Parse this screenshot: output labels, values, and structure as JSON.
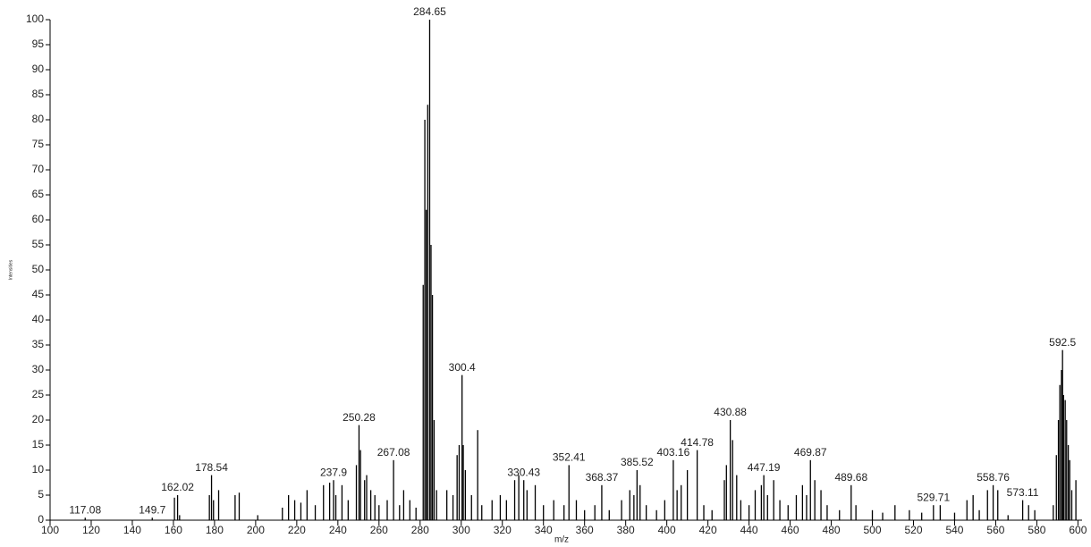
{
  "chart_data": {
    "type": "stem",
    "x_label": "m/z",
    "y_label": "Intensities",
    "color": "#000000",
    "xlim": [
      100,
      602
    ],
    "ylim": [
      0,
      100
    ],
    "xticks": [
      100,
      120,
      140,
      160,
      180,
      200,
      220,
      240,
      260,
      280,
      300,
      320,
      340,
      360,
      380,
      400,
      420,
      440,
      460,
      480,
      500,
      520,
      540,
      560,
      580,
      600
    ],
    "yticks": [
      0,
      5,
      10,
      15,
      20,
      25,
      30,
      35,
      40,
      45,
      50,
      55,
      60,
      65,
      70,
      75,
      80,
      85,
      90,
      95,
      100
    ],
    "peaks": {
      "x": [
        117.08,
        149.7,
        162.02,
        178.54,
        237.9,
        250.28,
        267.08,
        284.65,
        300.4,
        330.43,
        352.41,
        368.37,
        385.52,
        403.16,
        414.78,
        430.88,
        447.19,
        469.87,
        489.68,
        529.71,
        558.76,
        573.11,
        592.5
      ],
      "values": [
        0.5,
        0.5,
        5,
        9,
        8,
        19,
        12,
        100,
        29,
        8,
        11,
        7,
        10,
        12,
        14,
        20,
        9,
        12,
        7,
        3,
        7,
        4,
        34
      ]
    },
    "minor_peaks": {
      "x": [
        160.5,
        163,
        177.5,
        179.5,
        182,
        190,
        192,
        201,
        213,
        216,
        219,
        222,
        225,
        229,
        233,
        236,
        239,
        242,
        245,
        249,
        251,
        253,
        254,
        256,
        258,
        260,
        264,
        270,
        272,
        275,
        278,
        281.5,
        282.3,
        283,
        283.7,
        285.3,
        286,
        286.8,
        288,
        293,
        296,
        298,
        299,
        301,
        302,
        305,
        308,
        310,
        315,
        319,
        322,
        326,
        328,
        332,
        336,
        340,
        345,
        350,
        356,
        360,
        365,
        372,
        378,
        382,
        384,
        387,
        390,
        395,
        399,
        405,
        407,
        410,
        418,
        422,
        428,
        429,
        432,
        434,
        436,
        440,
        443,
        446,
        449,
        452,
        455,
        459,
        463,
        466,
        468,
        472,
        475,
        478,
        484,
        492,
        500,
        505,
        511,
        518,
        524,
        533,
        540,
        546,
        549,
        552,
        556,
        561,
        566,
        576,
        579,
        588,
        589.5,
        590.5,
        591.2,
        592,
        593,
        593.8,
        594.5,
        595.3,
        596,
        597,
        599
      ],
      "values": [
        4.5,
        1,
        5,
        4,
        6,
        5,
        5.5,
        1,
        2.5,
        5,
        4,
        3.5,
        6,
        3,
        7,
        7.5,
        5,
        7,
        4,
        11,
        14,
        8,
        9,
        6,
        5,
        3,
        4,
        3,
        6,
        4,
        2.5,
        47,
        80,
        62,
        83,
        55,
        45,
        20,
        6,
        6,
        5,
        13,
        15,
        15,
        10,
        5,
        18,
        3,
        4,
        5,
        4,
        8,
        9,
        6,
        7,
        3,
        4,
        3,
        4,
        2,
        3,
        2,
        4,
        6,
        5,
        7,
        3,
        2,
        4,
        6,
        7,
        10,
        3,
        2,
        8,
        11,
        16,
        9,
        4,
        3,
        6,
        7,
        5,
        8,
        4,
        3,
        5,
        7,
        5,
        8,
        6,
        3,
        2,
        3,
        2,
        1.5,
        3,
        2,
        1.5,
        3,
        1.5,
        4,
        5,
        2,
        6,
        6,
        1,
        3,
        2,
        3,
        13,
        20,
        27,
        30,
        25,
        24,
        20,
        15,
        12,
        6,
        8
      ]
    }
  }
}
